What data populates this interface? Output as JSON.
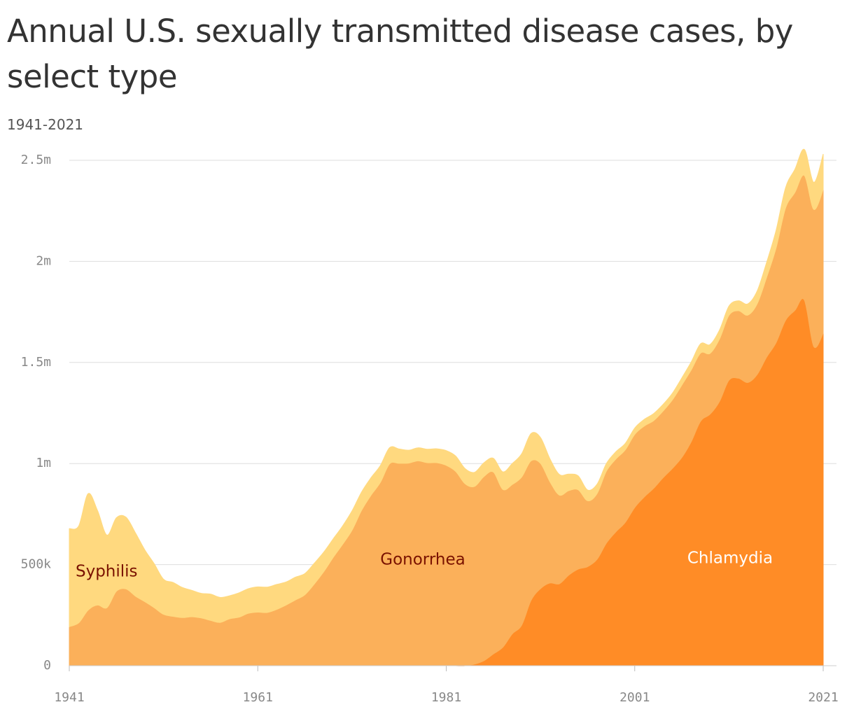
{
  "chart_data": {
    "type": "stacked-area",
    "title": "Annual U.S. sexually transmitted disease cases, by select type",
    "subtitle": "1941-2021",
    "x": [
      1941,
      1942,
      1943,
      1944,
      1945,
      1946,
      1947,
      1948,
      1949,
      1950,
      1951,
      1952,
      1953,
      1954,
      1955,
      1956,
      1957,
      1958,
      1959,
      1960,
      1961,
      1962,
      1963,
      1964,
      1965,
      1966,
      1967,
      1968,
      1969,
      1970,
      1971,
      1972,
      1973,
      1974,
      1975,
      1976,
      1977,
      1978,
      1979,
      1980,
      1981,
      1982,
      1983,
      1984,
      1985,
      1986,
      1987,
      1988,
      1989,
      1990,
      1991,
      1992,
      1993,
      1994,
      1995,
      1996,
      1997,
      1998,
      1999,
      2000,
      2001,
      2002,
      2003,
      2004,
      2005,
      2006,
      2007,
      2008,
      2009,
      2010,
      2011,
      2012,
      2013,
      2014,
      2015,
      2016,
      2017,
      2018,
      2019,
      2020,
      2021
    ],
    "series": [
      {
        "name": "Chlamydia",
        "color": "#ff8c26",
        "label_color": "#ffffff",
        "values": [
          0,
          0,
          0,
          0,
          0,
          0,
          0,
          0,
          0,
          0,
          0,
          0,
          0,
          0,
          0,
          0,
          0,
          0,
          0,
          0,
          0,
          0,
          0,
          0,
          0,
          0,
          0,
          0,
          0,
          0,
          0,
          0,
          0,
          0,
          0,
          0,
          0,
          0,
          0,
          0,
          0,
          0,
          0,
          7600,
          25000,
          58000,
          91000,
          157000,
          200000,
          323000,
          381000,
          409000,
          405000,
          448000,
          478000,
          490000,
          526000,
          607000,
          662000,
          709000,
          783000,
          834000,
          877000,
          929000,
          976000,
          1030000,
          1108000,
          1210000,
          1244000,
          1307000,
          1412000,
          1422000,
          1401000,
          1441000,
          1526000,
          1598000,
          1708000,
          1758000,
          1808000,
          1579000,
          1644000
        ]
      },
      {
        "name": "Gonorrhea",
        "color": "#fbb05a",
        "label_color": "#7a1200",
        "values": [
          193000,
          212000,
          275000,
          300000,
          287000,
          368000,
          380000,
          345000,
          317000,
          287000,
          254000,
          244000,
          238000,
          242000,
          236000,
          224000,
          214000,
          232000,
          240000,
          259000,
          265000,
          263000,
          278000,
          300000,
          325000,
          351000,
          404000,
          465000,
          535000,
          600000,
          670000,
          767000,
          842000,
          906000,
          999000,
          1001000,
          1002000,
          1013000,
          1004000,
          1004000,
          991000,
          961000,
          900000,
          879000,
          911000,
          900000,
          781000,
          739000,
          733000,
          690000,
          620000,
          501000,
          439000,
          418000,
          392000,
          326000,
          325000,
          356000,
          360000,
          359000,
          361000,
          351000,
          335000,
          330000,
          339000,
          358000,
          355000,
          337000,
          301000,
          309000,
          321000,
          334000,
          333000,
          350000,
          395000,
          468000,
          555000,
          583000,
          617000,
          678000,
          711000
        ]
      },
      {
        "name": "Syphilis",
        "color": "#ffd97f",
        "label_color": "#7a1200",
        "values": [
          485000,
          480000,
          576000,
          467000,
          359000,
          364000,
          355000,
          314000,
          257000,
          218000,
          174000,
          168000,
          149000,
          131000,
          122000,
          130000,
          124000,
          114000,
          120000,
          122000,
          125000,
          126000,
          124000,
          114000,
          113000,
          105000,
          103000,
          97000,
          92000,
          91000,
          96000,
          91000,
          87000,
          84000,
          80000,
          71000,
          64000,
          65000,
          67000,
          69000,
          73000,
          76000,
          75000,
          70000,
          68000,
          68000,
          87000,
          104000,
          115000,
          136000,
          128000,
          114000,
          102000,
          82000,
          69000,
          53000,
          47000,
          38000,
          36000,
          32000,
          32000,
          33000,
          35000,
          33000,
          33000,
          36000,
          40000,
          46000,
          44000,
          45000,
          46000,
          49000,
          56000,
          64000,
          75000,
          88000,
          101000,
          115000,
          129000,
          134000,
          176000
        ]
      }
    ],
    "xlim": [
      1941,
      2021
    ],
    "xticks": [
      1941,
      1961,
      1981,
      2001,
      2021
    ],
    "ylim": [
      0,
      2500000
    ],
    "yticks": [
      0,
      {
        "value": 500000,
        "label": "500k"
      },
      {
        "value": 1000000,
        "label": "1m"
      },
      {
        "value": 1500000,
        "label": "1.5m"
      },
      {
        "value": 2000000,
        "label": "2m"
      },
      {
        "value": 2500000,
        "label": "2.5m"
      }
    ],
    "grid": true
  }
}
